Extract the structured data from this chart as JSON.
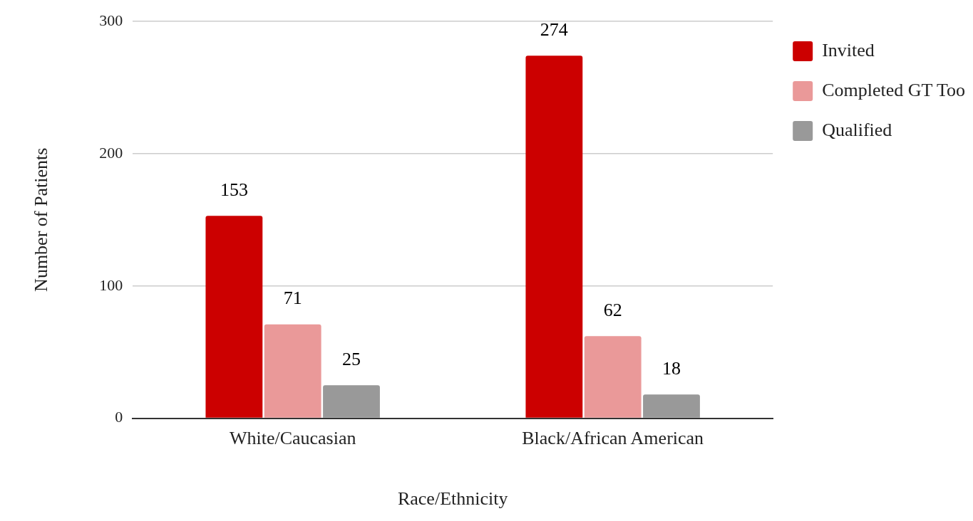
{
  "chart_data": {
    "type": "bar",
    "xlabel": "Race/Ethnicity",
    "ylabel": "Number of Patients",
    "categories": [
      "White/Caucasian",
      "Black/African American"
    ],
    "series": [
      {
        "name": "Invited",
        "color": "#cc0000",
        "values": [
          153,
          274
        ]
      },
      {
        "name": "Completed GT Too",
        "color": "#ea9999",
        "values": [
          71,
          62
        ]
      },
      {
        "name": "Qualified",
        "color": "#999999",
        "values": [
          25,
          18
        ]
      }
    ],
    "ylim": [
      0,
      300
    ],
    "yticks": [
      0,
      100,
      200,
      300
    ],
    "grid": "y",
    "legend": "top right",
    "data_labels": true
  }
}
